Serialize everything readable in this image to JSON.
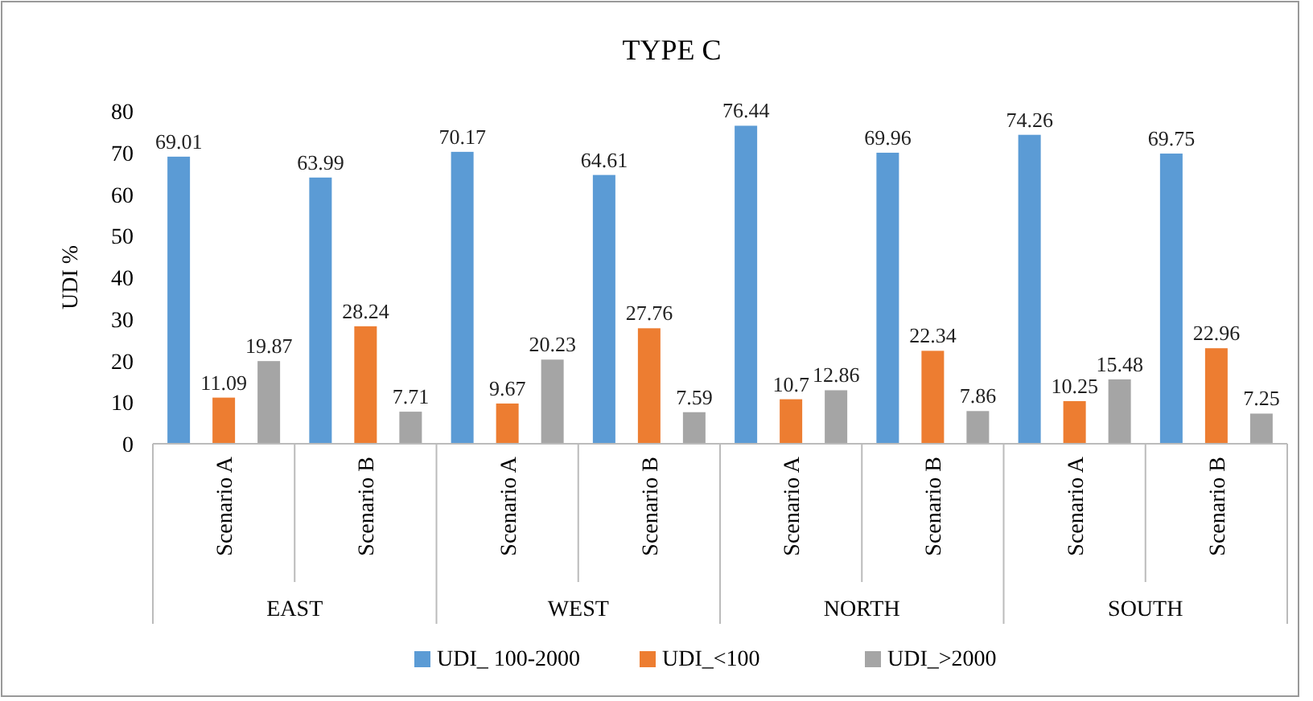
{
  "chart_data": {
    "type": "bar",
    "title": "TYPE C",
    "ylabel": "UDI %",
    "categories": [
      "Scenario A",
      "Scenario B",
      "Scenario A",
      "Scenario B",
      "Scenario A",
      "Scenario B",
      "Scenario A",
      "Scenario B"
    ],
    "annotations": [
      "EAST",
      "WEST",
      "NORTH",
      "SOUTH"
    ],
    "series": [
      {
        "name": "UDI_ 100-2000",
        "color": "#5b9bd5",
        "values": [
          69.01,
          63.99,
          70.17,
          64.61,
          76.44,
          69.96,
          74.26,
          69.75
        ]
      },
      {
        "name": "UDI_<100",
        "color": "#ed7d31",
        "values": [
          11.09,
          28.24,
          9.67,
          27.76,
          10.7,
          22.34,
          10.25,
          22.96
        ]
      },
      {
        "name": "UDI_>2000",
        "color": "#a5a5a5",
        "values": [
          19.87,
          7.71,
          20.23,
          7.59,
          12.86,
          7.86,
          15.48,
          7.25
        ]
      }
    ],
    "ylim": [
      0,
      80
    ],
    "yticks": [
      0,
      10,
      20,
      30,
      40,
      50,
      60,
      70,
      80
    ],
    "data_labels": true,
    "legend": "bottom"
  }
}
